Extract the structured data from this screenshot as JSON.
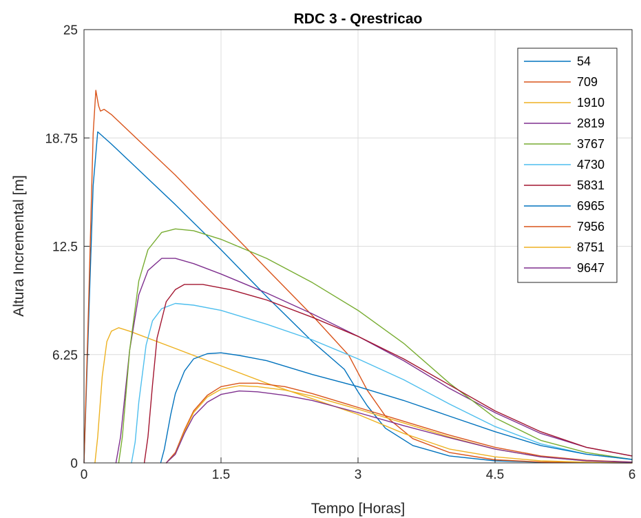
{
  "chart_data": {
    "type": "line",
    "title": "RDC 3 - Qrestricao",
    "xlabel": "Tempo [Horas]",
    "ylabel": "Altura Incremental [m]",
    "xlim": [
      0,
      6
    ],
    "ylim": [
      0,
      25
    ],
    "xticks": [
      0,
      1.5,
      3,
      4.5,
      6
    ],
    "xtick_labels": [
      "0",
      "1.5",
      "3",
      "4.5",
      "6"
    ],
    "yticks": [
      0,
      6.25,
      12.5,
      18.75,
      25
    ],
    "ytick_labels": [
      "0",
      "6.25",
      "12.5",
      "18.75",
      "25"
    ],
    "grid": true,
    "legend_position": "top-right",
    "series": [
      {
        "name": "54",
        "color": "#0072BD",
        "x": [
          0,
          0.05,
          0.1,
          0.15,
          0.3,
          0.6,
          1.0,
          1.5,
          2.0,
          2.5,
          2.85,
          3.0,
          3.1,
          3.3,
          3.6,
          4.0,
          4.5,
          5.0,
          5.5,
          6.0
        ],
        "y": [
          0,
          8,
          16,
          19.1,
          18.4,
          16.9,
          14.9,
          12.3,
          9.6,
          7.0,
          5.4,
          4.1,
          3.3,
          2.0,
          1.0,
          0.4,
          0.12,
          0.04,
          0.01,
          0
        ]
      },
      {
        "name": "709",
        "color": "#D95319",
        "x": [
          0,
          0.05,
          0.1,
          0.13,
          0.16,
          0.18,
          0.22,
          0.3,
          0.6,
          1.0,
          1.5,
          2.0,
          2.5,
          2.9,
          3.0,
          3.1,
          3.3,
          3.6,
          4.0,
          4.5,
          5.0,
          5.5,
          6.0
        ],
        "y": [
          0,
          9,
          19,
          21.5,
          20.6,
          20.3,
          20.4,
          20.1,
          18.6,
          16.6,
          13.9,
          11.2,
          8.5,
          6.2,
          5.2,
          4.2,
          2.7,
          1.4,
          0.6,
          0.18,
          0.05,
          0.01,
          0
        ]
      },
      {
        "name": "1910",
        "color": "#EDB120",
        "x": [
          0.12,
          0.15,
          0.2,
          0.25,
          0.3,
          0.38,
          0.5,
          1.0,
          1.5,
          2.0,
          2.5,
          3.0,
          3.5,
          4.0,
          4.5,
          5.0,
          5.5,
          6.0
        ],
        "y": [
          0,
          1.5,
          5.0,
          7.0,
          7.6,
          7.8,
          7.6,
          6.6,
          5.6,
          4.6,
          3.7,
          2.8,
          1.7,
          0.8,
          0.35,
          0.12,
          0.04,
          0
        ]
      },
      {
        "name": "2819",
        "color": "#7E2F8E",
        "x": [
          0.35,
          0.4,
          0.5,
          0.6,
          0.7,
          0.85,
          1.0,
          1.2,
          1.5,
          2.0,
          2.5,
          3.0,
          3.5,
          4.0,
          4.5,
          5.0,
          5.5,
          6.0
        ],
        "y": [
          0,
          1.5,
          6.5,
          9.7,
          11.1,
          11.8,
          11.8,
          11.5,
          10.9,
          9.8,
          8.6,
          7.3,
          5.9,
          4.3,
          2.9,
          1.7,
          0.9,
          0.4
        ]
      },
      {
        "name": "3767",
        "color": "#77AC30",
        "x": [
          0.38,
          0.42,
          0.5,
          0.6,
          0.7,
          0.85,
          1.0,
          1.2,
          1.5,
          2.0,
          2.5,
          3.0,
          3.5,
          4.0,
          4.5,
          5.0,
          5.5,
          6.0
        ],
        "y": [
          0,
          1.5,
          6.5,
          10.5,
          12.3,
          13.3,
          13.5,
          13.4,
          12.9,
          11.8,
          10.4,
          8.8,
          6.9,
          4.6,
          2.6,
          1.3,
          0.6,
          0.2
        ]
      },
      {
        "name": "4730",
        "color": "#4DBEEE",
        "x": [
          0.52,
          0.56,
          0.6,
          0.68,
          0.75,
          0.85,
          1.0,
          1.2,
          1.5,
          2.0,
          2.5,
          3.0,
          3.5,
          4.0,
          4.5,
          5.0,
          5.5,
          6.0
        ],
        "y": [
          0,
          1.2,
          3.5,
          6.8,
          8.2,
          8.9,
          9.2,
          9.1,
          8.8,
          8.0,
          7.1,
          6.0,
          4.8,
          3.4,
          2.1,
          1.1,
          0.5,
          0.2
        ]
      },
      {
        "name": "5831",
        "color": "#A2142F",
        "x": [
          0.66,
          0.7,
          0.75,
          0.8,
          0.9,
          1.0,
          1.1,
          1.3,
          1.6,
          2.0,
          2.5,
          3.0,
          3.5,
          4.0,
          4.5,
          5.0,
          5.5,
          6.0
        ],
        "y": [
          0,
          1.5,
          4.5,
          7.2,
          9.3,
          10.0,
          10.3,
          10.3,
          10.0,
          9.4,
          8.4,
          7.3,
          6.0,
          4.5,
          3.0,
          1.8,
          0.9,
          0.4
        ]
      },
      {
        "name": "6965",
        "color": "#0072BD",
        "x": [
          0.84,
          0.88,
          0.95,
          1.0,
          1.1,
          1.2,
          1.35,
          1.5,
          1.7,
          2.0,
          2.5,
          3.0,
          3.5,
          4.0,
          4.5,
          5.0,
          5.5,
          6.0
        ],
        "y": [
          0,
          0.8,
          2.8,
          4.0,
          5.3,
          6.0,
          6.3,
          6.35,
          6.2,
          5.9,
          5.1,
          4.4,
          3.6,
          2.7,
          1.8,
          1.0,
          0.5,
          0.2
        ]
      },
      {
        "name": "7956",
        "color": "#D95319",
        "x": [
          0.9,
          1.0,
          1.1,
          1.2,
          1.35,
          1.5,
          1.7,
          1.9,
          2.2,
          2.5,
          3.0,
          3.5,
          4.0,
          4.5,
          5.0,
          5.5,
          6.0
        ],
        "y": [
          0,
          0.6,
          1.9,
          3.0,
          3.9,
          4.4,
          4.6,
          4.6,
          4.4,
          4.0,
          3.2,
          2.4,
          1.6,
          0.9,
          0.4,
          0.15,
          0.05
        ]
      },
      {
        "name": "8751",
        "color": "#EDB120",
        "x": [
          0.9,
          1.0,
          1.1,
          1.2,
          1.35,
          1.5,
          1.7,
          1.9,
          2.2,
          2.5,
          3.0,
          3.5,
          4.0,
          4.5,
          5.0,
          5.5,
          6.0
        ],
        "y": [
          0,
          0.5,
          1.8,
          2.9,
          3.8,
          4.25,
          4.45,
          4.4,
          4.2,
          3.85,
          3.1,
          2.3,
          1.5,
          0.8,
          0.35,
          0.12,
          0.04
        ]
      },
      {
        "name": "9647",
        "color": "#7E2F8E",
        "x": [
          0.9,
          1.0,
          1.1,
          1.2,
          1.35,
          1.5,
          1.7,
          1.9,
          2.2,
          2.5,
          3.0,
          3.5,
          4.0,
          4.5,
          5.0,
          5.5,
          6.0
        ],
        "y": [
          0,
          0.5,
          1.7,
          2.7,
          3.5,
          3.95,
          4.15,
          4.1,
          3.9,
          3.6,
          2.9,
          2.15,
          1.45,
          0.8,
          0.35,
          0.12,
          0.04
        ]
      }
    ]
  }
}
